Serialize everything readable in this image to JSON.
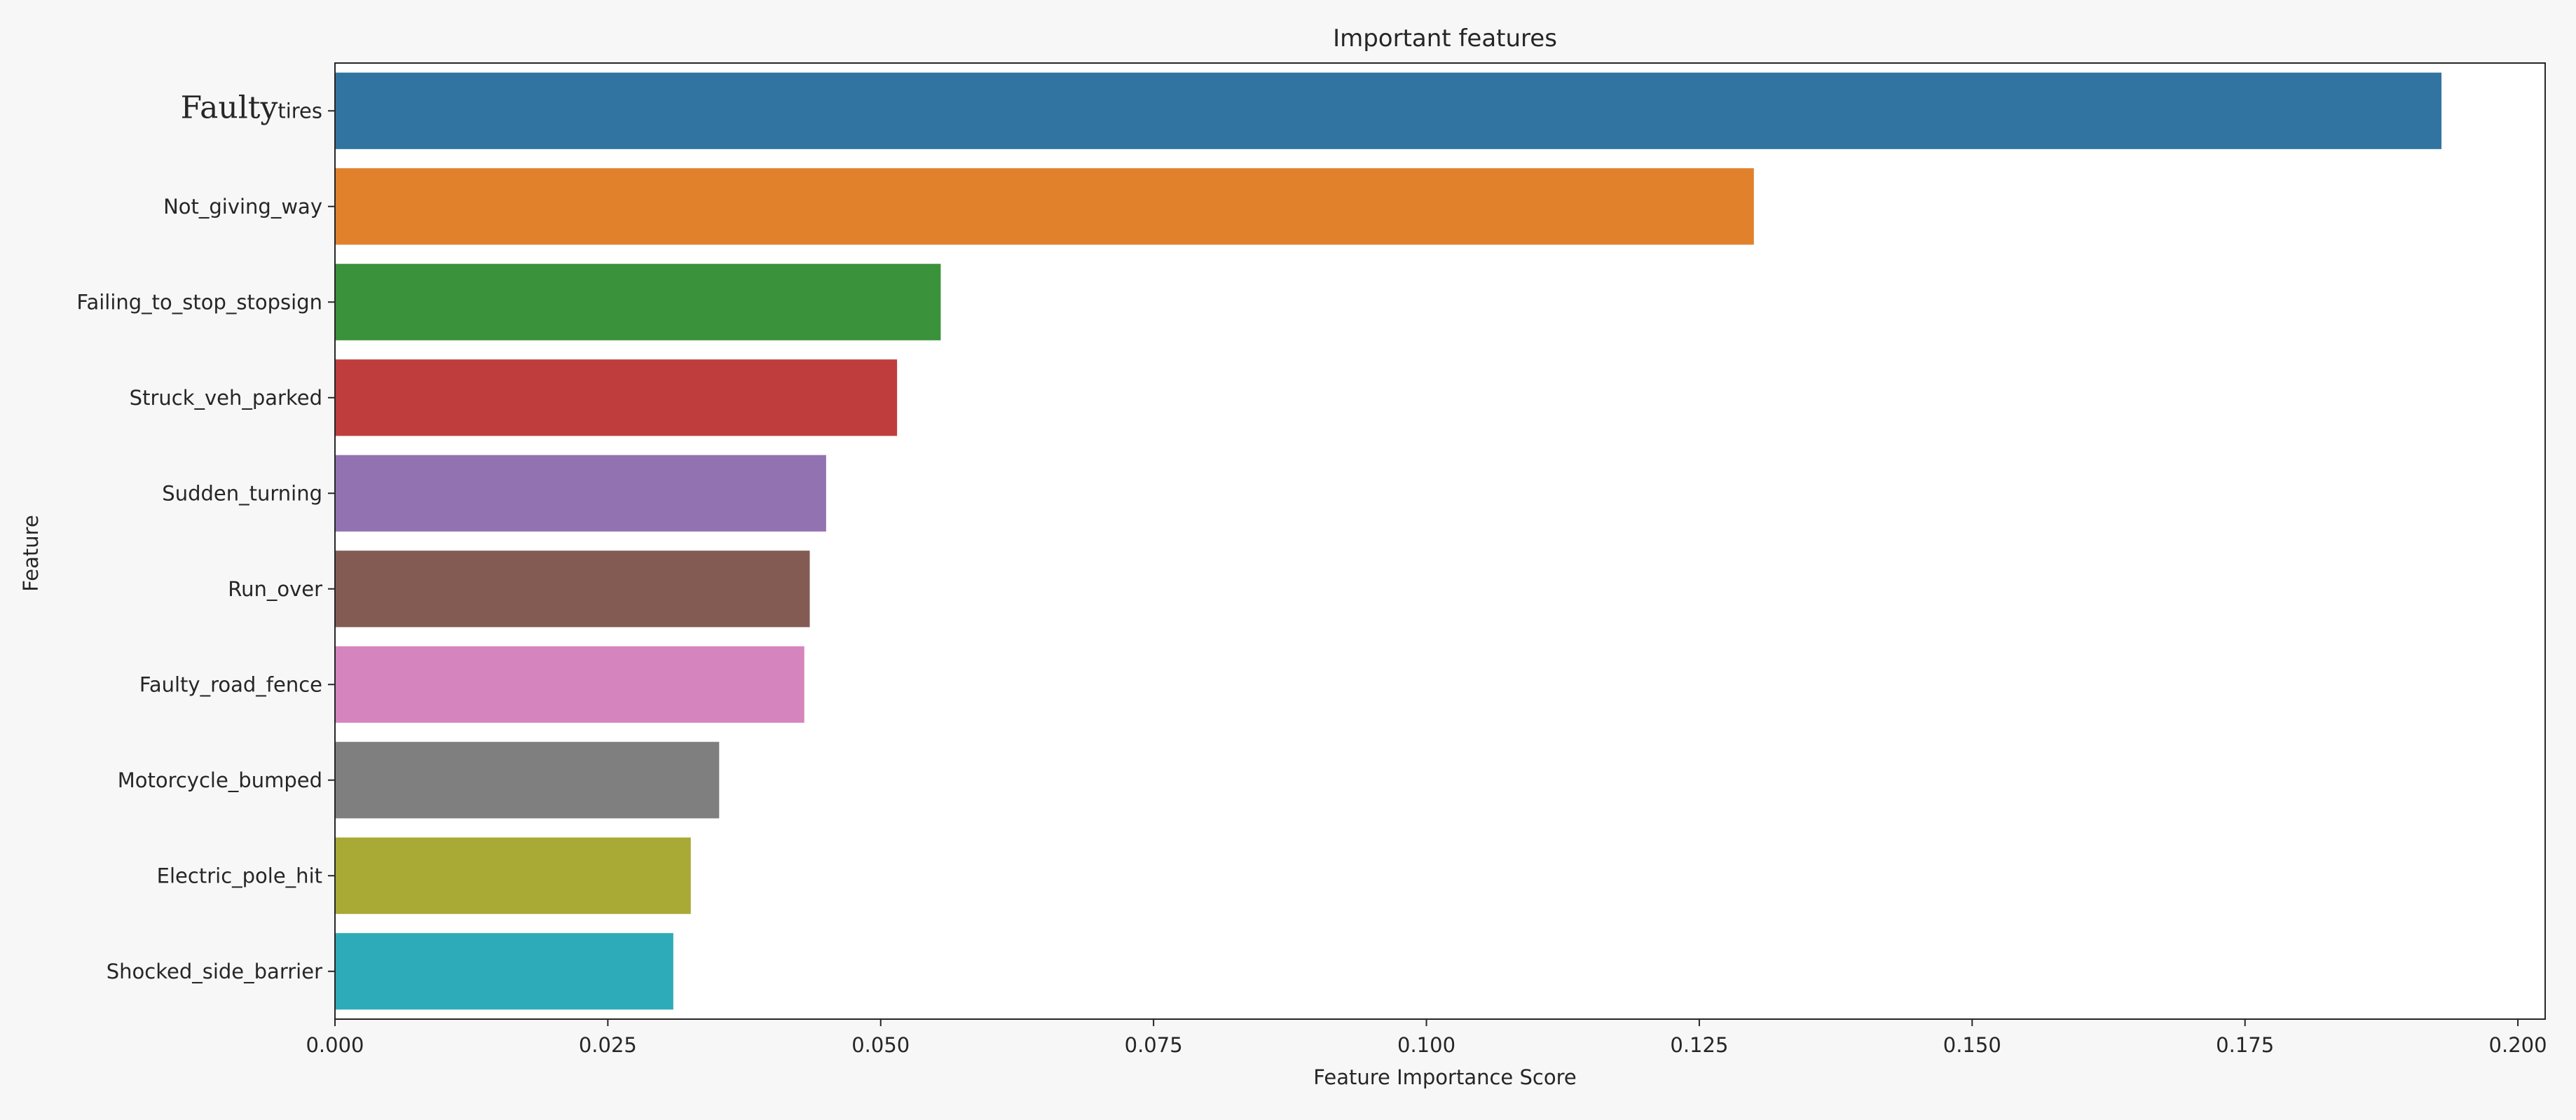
{
  "chart_data": {
    "type": "bar",
    "orientation": "horizontal",
    "title": "Important features",
    "xlabel": "Feature Importance Score",
    "ylabel": "Feature",
    "categories": [
      "Faulty_tires",
      "Not_giving_way",
      "Failing_to_stop_stopsign",
      "Struck_veh_parked",
      "Sudden_turning",
      "Run_over",
      "Faulty_road_fence",
      "Motorcycle_bumped",
      "Electric_pole_hit",
      "Shocked_side_barrier"
    ],
    "values": [
      0.193,
      0.13,
      0.0555,
      0.0515,
      0.045,
      0.0435,
      0.043,
      0.0352,
      0.0326,
      0.031
    ],
    "colors": [
      "#3274a1",
      "#e1812c",
      "#3a923a",
      "#c03d3e",
      "#9372b2",
      "#845b53",
      "#d684bd",
      "#7f7f7f",
      "#a9aa35",
      "#2eabb8"
    ],
    "xlim": [
      0,
      0.2025
    ],
    "xticks": [
      0.0,
      0.025,
      0.05,
      0.075,
      0.1,
      0.125,
      0.15,
      0.175,
      0.2
    ],
    "xtick_labels": [
      "0.000",
      "0.025",
      "0.050",
      "0.075",
      "0.100",
      "0.125",
      "0.150",
      "0.175",
      "0.200"
    ],
    "grid": false,
    "first_label_overlay": {
      "large_text": "Faulty",
      "small_text": "tires"
    }
  }
}
